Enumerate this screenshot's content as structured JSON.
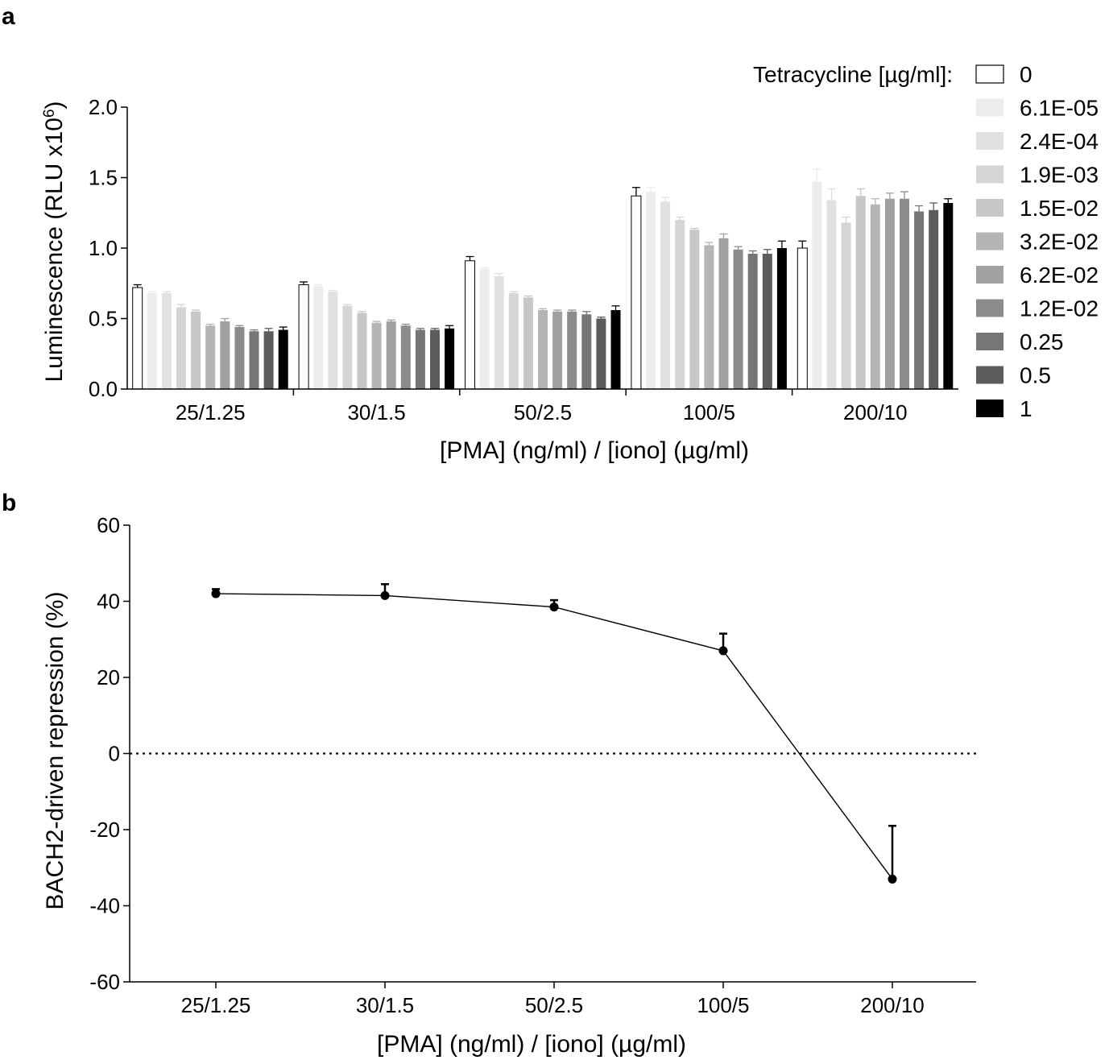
{
  "chart_data": [
    {
      "panel": "a",
      "type": "bar",
      "title": "",
      "xlabel": "[PMA] (ng/ml) / [iono] (µg/ml)",
      "ylabel_main": "Luminescence (RLU x10",
      "ylabel_sup": "6",
      "ylabel_end": ")",
      "ylim": [
        0,
        2.0
      ],
      "yticks": [
        "0.0",
        "0.5",
        "1.0",
        "1.5",
        "2.0"
      ],
      "categories": [
        "25/1.25",
        "30/1.5",
        "50/2.5",
        "100/5",
        "200/10"
      ],
      "legend_title": "Tetracycline [µg/ml]:",
      "legend_position": "right",
      "series": [
        {
          "name": "0",
          "color": "#ffffff",
          "values": [
            0.72,
            0.74,
            0.91,
            1.37,
            1.0
          ],
          "errors": [
            0.02,
            0.02,
            0.03,
            0.06,
            0.05
          ]
        },
        {
          "name": "6.1E-05",
          "color": "#ececec",
          "values": [
            0.68,
            0.73,
            0.85,
            1.4,
            1.47
          ],
          "errors": [
            0.01,
            0.01,
            0.01,
            0.03,
            0.09
          ]
        },
        {
          "name": "2.4E-04",
          "color": "#e1e1e1",
          "values": [
            0.68,
            0.69,
            0.8,
            1.33,
            1.34
          ],
          "errors": [
            0.01,
            0.01,
            0.02,
            0.03,
            0.08
          ]
        },
        {
          "name": "1.9E-03",
          "color": "#d5d5d5",
          "values": [
            0.58,
            0.59,
            0.68,
            1.2,
            1.18
          ],
          "errors": [
            0.02,
            0.01,
            0.01,
            0.02,
            0.04
          ]
        },
        {
          "name": "1.5E-02",
          "color": "#c7c7c7",
          "values": [
            0.55,
            0.54,
            0.65,
            1.13,
            1.37
          ],
          "errors": [
            0.01,
            0.01,
            0.01,
            0.01,
            0.05
          ]
        },
        {
          "name": "3.2E-02",
          "color": "#b5b5b5",
          "values": [
            0.45,
            0.47,
            0.56,
            1.02,
            1.31
          ],
          "errors": [
            0.01,
            0.01,
            0.01,
            0.02,
            0.04
          ]
        },
        {
          "name": "6.2E-02",
          "color": "#a1a1a1",
          "values": [
            0.48,
            0.48,
            0.55,
            1.07,
            1.35
          ],
          "errors": [
            0.02,
            0.01,
            0.01,
            0.03,
            0.04
          ]
        },
        {
          "name": "1.2E-02",
          "color": "#8c8c8c",
          "values": [
            0.44,
            0.45,
            0.55,
            0.99,
            1.35
          ],
          "errors": [
            0.01,
            0.01,
            0.01,
            0.02,
            0.05
          ]
        },
        {
          "name": "0.25",
          "color": "#767676",
          "values": [
            0.41,
            0.42,
            0.53,
            0.96,
            1.26
          ],
          "errors": [
            0.01,
            0.01,
            0.02,
            0.02,
            0.04
          ]
        },
        {
          "name": "0.5",
          "color": "#5c5c5c",
          "values": [
            0.41,
            0.42,
            0.5,
            0.96,
            1.27
          ],
          "errors": [
            0.02,
            0.01,
            0.01,
            0.03,
            0.05
          ]
        },
        {
          "name": "1",
          "color": "#000000",
          "values": [
            0.42,
            0.43,
            0.56,
            1.0,
            1.32
          ],
          "errors": [
            0.02,
            0.02,
            0.03,
            0.05,
            0.03
          ]
        }
      ]
    },
    {
      "panel": "b",
      "type": "line",
      "title": "",
      "xlabel": "[PMA] (ng/ml) / [iono] (µg/ml)",
      "ylabel": "BACH2-driven repression (%)",
      "ylim": [
        -60,
        60
      ],
      "yticks": [
        "60",
        "40",
        "20",
        "0",
        "-20",
        "-40",
        "-60"
      ],
      "categories": [
        "25/1.25",
        "30/1.5",
        "50/2.5",
        "100/5",
        "200/10"
      ],
      "values": [
        42,
        41.5,
        38.5,
        27,
        -33
      ],
      "errors_upper": [
        1.2,
        3.0,
        1.8,
        4.5,
        14
      ],
      "zero_reference_line": "dotted",
      "color": "#000000"
    }
  ]
}
